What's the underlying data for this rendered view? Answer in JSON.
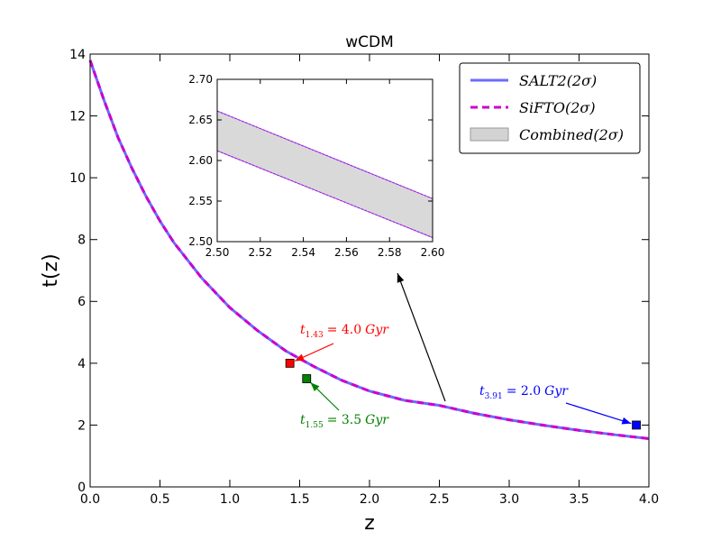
{
  "chart_data": [
    {
      "type": "line",
      "title": "wCDM",
      "x_label": "z",
      "y_label": "t(z)",
      "x": [
        0,
        0.1,
        0.2,
        0.3,
        0.4,
        0.5,
        0.6,
        0.8,
        1.0,
        1.2,
        1.4,
        1.6,
        1.8,
        2.0,
        2.25,
        2.5,
        2.75,
        3.0,
        3.25,
        3.5,
        3.75,
        4.0
      ],
      "series": [
        {
          "name": "SALT2(2σ)",
          "color": "#6b6bff",
          "values": [
            13.8,
            12.5,
            11.3,
            10.3,
            9.4,
            8.6,
            7.9,
            6.75,
            5.8,
            5.05,
            4.4,
            3.9,
            3.45,
            3.1,
            2.8,
            2.635,
            2.38,
            2.17,
            1.99,
            1.83,
            1.69,
            1.56
          ]
        },
        {
          "name": "SiFTO(2σ)",
          "color": "#cc00cc",
          "dashed": true,
          "values": [
            13.8,
            12.5,
            11.3,
            10.3,
            9.4,
            8.6,
            7.9,
            6.75,
            5.8,
            5.05,
            4.4,
            3.9,
            3.45,
            3.1,
            2.8,
            2.635,
            2.38,
            2.17,
            1.99,
            1.83,
            1.69,
            1.56
          ]
        },
        {
          "name": "Combined(2σ)",
          "color": "#d3d3d3",
          "band": true,
          "lower": [
            13.77,
            12.47,
            11.27,
            10.27,
            9.37,
            8.57,
            7.87,
            6.72,
            5.77,
            5.02,
            4.37,
            3.87,
            3.42,
            3.07,
            2.77,
            2.61,
            2.355,
            2.145,
            1.965,
            1.805,
            1.665,
            1.535
          ],
          "upper": [
            13.83,
            12.53,
            11.33,
            10.33,
            9.43,
            8.63,
            7.93,
            6.78,
            5.83,
            5.08,
            4.43,
            3.93,
            3.48,
            3.13,
            2.83,
            2.66,
            2.405,
            2.195,
            2.015,
            1.855,
            1.715,
            1.585
          ]
        }
      ],
      "points": [
        {
          "x": 1.43,
          "y": 4.0,
          "color": "#ff0000",
          "symbol": "t",
          "label": "= 4.0",
          "unit": "Gyr"
        },
        {
          "x": 1.55,
          "y": 3.5,
          "color": "#008000",
          "symbol": "t",
          "label": "= 3.5",
          "unit": "Gyr"
        },
        {
          "x": 3.91,
          "y": 2.0,
          "color": "#0000ff",
          "symbol": "t",
          "label": "= 2.0",
          "unit": "Gyr"
        }
      ],
      "xlim": [
        0,
        4
      ],
      "ylim": [
        0,
        14
      ],
      "xticks": [
        {
          "value": 0,
          "label": "0.0"
        },
        0.5,
        {
          "value": 1,
          "label": "1.0"
        },
        1.5,
        {
          "value": 2,
          "label": "2.0"
        },
        2.5,
        {
          "value": 3,
          "label": "3.0"
        },
        3.5,
        {
          "value": 4,
          "label": "4.0"
        }
      ],
      "yticks": [
        0,
        2,
        4,
        6,
        8,
        10,
        12,
        14
      ],
      "legend": "upper right"
    },
    {
      "type": "line",
      "x": [
        2.5,
        2.6
      ],
      "series": [
        {
          "color": "#6b6bff",
          "lower": [
            2.612,
            2.505
          ],
          "upper": [
            2.661,
            2.553
          ]
        },
        {
          "color": "#cc00cc",
          "dashed": true,
          "lower": [
            2.612,
            2.505
          ],
          "upper": [
            2.661,
            2.553
          ]
        }
      ],
      "band_color": "#d9d9d9",
      "xlim": [
        2.5,
        2.6
      ],
      "ylim": [
        2.5,
        2.7
      ],
      "xticks": [
        {
          "value": 2.5,
          "label": "2.50"
        },
        2.52,
        2.54,
        2.56,
        2.58,
        {
          "value": 2.6,
          "label": "2.60"
        }
      ],
      "yticks": [
        {
          "value": 2.5,
          "label": "2.50"
        },
        2.55,
        {
          "value": 2.6,
          "label": "2.60"
        },
        2.65,
        {
          "value": 2.7,
          "label": "2.70"
        }
      ]
    }
  ]
}
